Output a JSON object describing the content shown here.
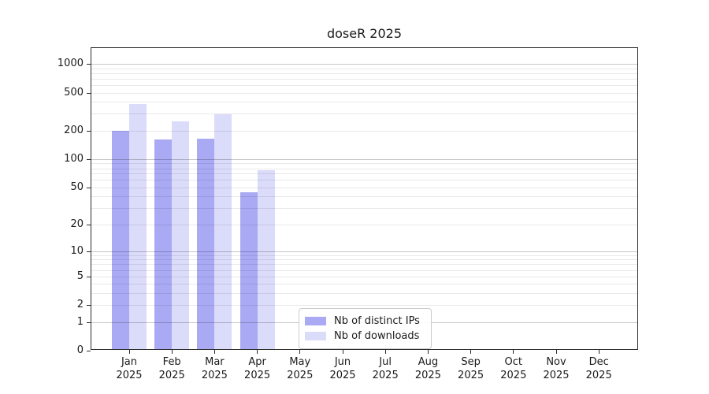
{
  "chart_data": {
    "type": "bar",
    "title": "doseR 2025",
    "x": {
      "categories": [
        "Jan",
        "Feb",
        "Mar",
        "Apr",
        "May",
        "Jun",
        "Jul",
        "Aug",
        "Sep",
        "Oct",
        "Nov",
        "Dec"
      ],
      "sub_label": "2025"
    },
    "series": [
      {
        "name": "Nb of distinct IPs",
        "color": "#a9a9f4",
        "values": [
          190,
          156,
          158,
          43,
          null,
          null,
          null,
          null,
          null,
          null,
          null,
          null
        ]
      },
      {
        "name": "Nb of downloads",
        "color": "#dbdbfa",
        "values": [
          365,
          240,
          287,
          73,
          null,
          null,
          null,
          null,
          null,
          null,
          null,
          null
        ]
      }
    ],
    "y_axis": {
      "scale": "log10(1+value)",
      "tick_values": [
        0,
        1,
        2,
        5,
        10,
        20,
        50,
        100,
        200,
        500,
        1000
      ],
      "ylim": [
        0,
        1465
      ],
      "grid": "on"
    },
    "legend": {
      "position": "lower center",
      "entries": [
        "Nb of distinct IPs",
        "Nb of downloads"
      ]
    }
  }
}
